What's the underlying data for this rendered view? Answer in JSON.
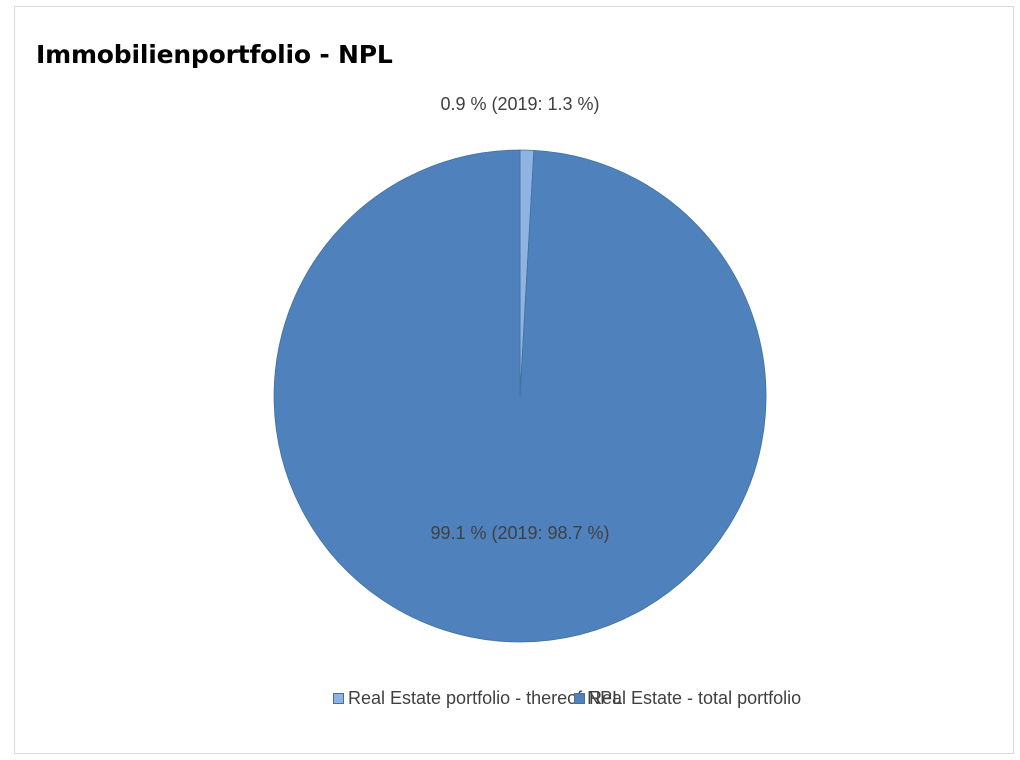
{
  "chart_data": {
    "type": "pie",
    "title": "Immobilienportfolio - NPL",
    "categories": [
      "Real Estate portfolio - thereof NPL",
      "Real Estate - total portfolio"
    ],
    "values": [
      0.9,
      99.1
    ],
    "data_labels": [
      "0.9 % (2019: 1.3 %)",
      "99.1 % (2019: 98.7 %)"
    ],
    "colors": [
      "#8fb4e3",
      "#4f81bd"
    ],
    "legend_position": "bottom",
    "start_angle": "top, clockwise"
  }
}
